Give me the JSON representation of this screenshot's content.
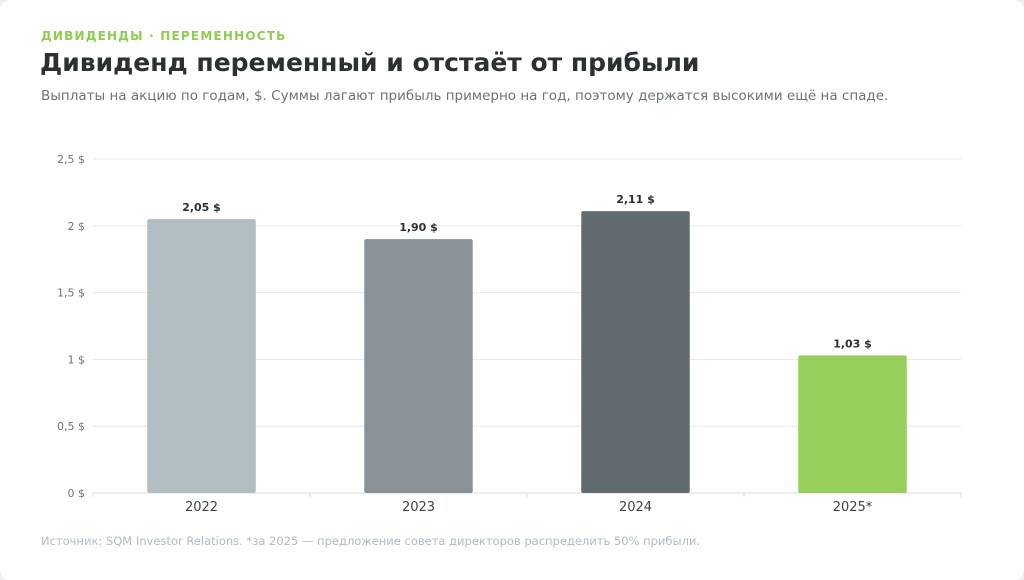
{
  "header": {
    "eyebrow": "ДИВИДЕНДЫ · ПЕРЕМЕННОСТЬ",
    "title": "Дивиденд переменный и отстаёт от прибыли",
    "subtitle": "Выплаты на акцию по годам, $. Суммы лагают прибыль примерно на год, поэтому держатся высокими ещё на спаде."
  },
  "footer": {
    "source": "Источник: SQM Investor Relations. *за 2025 — предложение совета директоров распределить 50% прибыли."
  },
  "chart_data": {
    "type": "bar",
    "categories": [
      "2022",
      "2023",
      "2024",
      "2025*"
    ],
    "values": [
      2.05,
      1.9,
      2.11,
      1.03
    ],
    "data_labels": [
      "2,05 $",
      "1,90 $",
      "2,11 $",
      "1,03 $"
    ],
    "colors": [
      "#b3bec3",
      "#8a9298",
      "#626c70",
      "#96cf5b"
    ],
    "yticks": [
      0,
      0.5,
      1,
      1.5,
      2,
      2.5
    ],
    "ytick_labels": [
      "0 $",
      "0,5 $",
      "1 $",
      "1,5 $",
      "2 $",
      "2,5 $"
    ],
    "ylim": [
      0,
      2.5
    ],
    "grid": true,
    "gridline_color": "#e6eaec",
    "xlabel": "",
    "ylabel": ""
  }
}
